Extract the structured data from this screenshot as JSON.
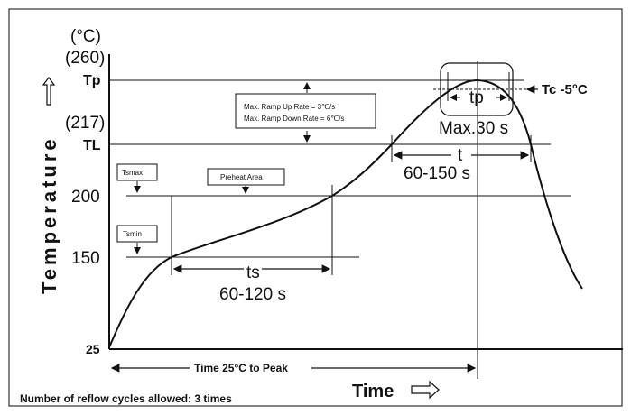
{
  "y_axis": {
    "title": "Temperature",
    "unit_label": "(°C)",
    "tp_value": "(260)",
    "tp_label": "Tp",
    "tl_value": "(217)",
    "tl_label": "TL",
    "tick_200": "200",
    "tick_150": "150",
    "tick_25": "25"
  },
  "x_axis": {
    "title": "Time"
  },
  "annotations": {
    "ramp_up": "Max. Ramp Up Rate = 3℃/s",
    "ramp_down": "Max. Ramp Down Rate = 6℃/s",
    "tsmax": "Tsmax",
    "tsmin": "Tsmin",
    "preheat": "Preheat Area",
    "ts_label": "ts",
    "ts_range": "60-120 s",
    "t_label": "t",
    "t_range": "60-150 s",
    "tp_label": "tp",
    "tp_range": "Max.30 s",
    "tc_label": "Tc -5°C",
    "time_to_peak": "Time 25°C to Peak",
    "reflow_note": "Number of reflow cycles allowed: 3 times"
  },
  "colors": {
    "line": "#111111",
    "frame": "#333333",
    "background": "#ffffff"
  }
}
